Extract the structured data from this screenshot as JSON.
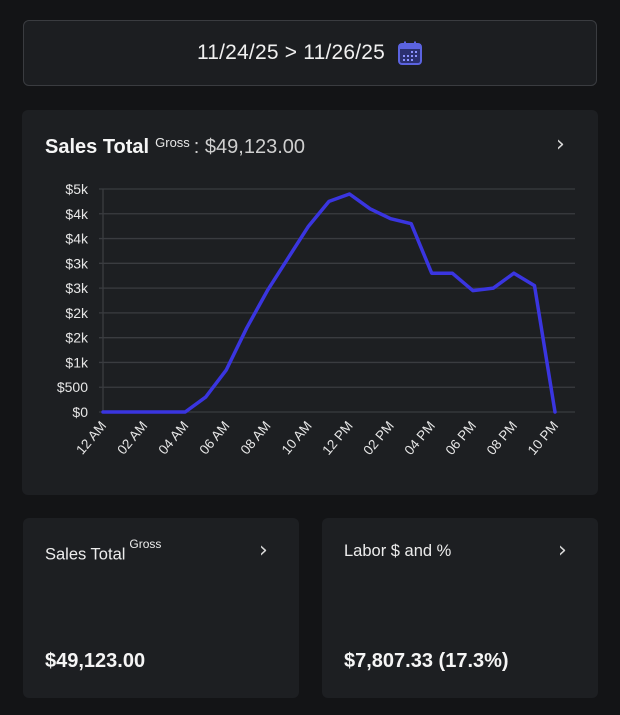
{
  "date_range": {
    "text": "11/24/25 > 11/26/25",
    "icon": "calendar-icon"
  },
  "chart_card": {
    "title": "Sales Total",
    "superscript": "Gross",
    "value": ": $49,123.00",
    "chevron": "›"
  },
  "cards": [
    {
      "title": "Sales Total",
      "superscript": "Gross",
      "value": "$49,123.00",
      "chevron": "›"
    },
    {
      "title": "Labor $ and %",
      "superscript": "",
      "value": "$7,807.33 (17.3%)",
      "chevron": "›"
    }
  ],
  "colors": {
    "line": "#3a35e0",
    "accent_icon": "#4a52c8",
    "background": "#131416",
    "card": "#1d1f22"
  },
  "chart_data": {
    "type": "line",
    "title": "Sales Total Gross",
    "xlabel": "",
    "ylabel": "",
    "ylim": [
      0,
      4500
    ],
    "grid": true,
    "y_ticks": [
      {
        "value": 0,
        "label": "$0"
      },
      {
        "value": 500,
        "label": "$500"
      },
      {
        "value": 1000,
        "label": "$1k"
      },
      {
        "value": 1500,
        "label": "$2k"
      },
      {
        "value": 2000,
        "label": "$2k"
      },
      {
        "value": 2500,
        "label": "$3k"
      },
      {
        "value": 3000,
        "label": "$3k"
      },
      {
        "value": 3500,
        "label": "$4k"
      },
      {
        "value": 4000,
        "label": "$4k"
      },
      {
        "value": 4500,
        "label": "$5k"
      }
    ],
    "x_ticks": [
      "12 AM",
      "02 AM",
      "04 AM",
      "06 AM",
      "08 AM",
      "10 AM",
      "12 PM",
      "02 PM",
      "04 PM",
      "06 PM",
      "08 PM",
      "10 PM"
    ],
    "x_hours": [
      0,
      1,
      2,
      3,
      4,
      5,
      6,
      7,
      8,
      9,
      10,
      11,
      12,
      13,
      14,
      15,
      16,
      17,
      18,
      19,
      20,
      21,
      22
    ],
    "series": [
      {
        "name": "Sales",
        "values": [
          0,
          0,
          0,
          0,
          0,
          300,
          850,
          1700,
          2450,
          3100,
          3750,
          4250,
          4400,
          4100,
          3900,
          3800,
          2800,
          2800,
          2450,
          2500,
          2800,
          2550,
          0
        ]
      }
    ]
  }
}
